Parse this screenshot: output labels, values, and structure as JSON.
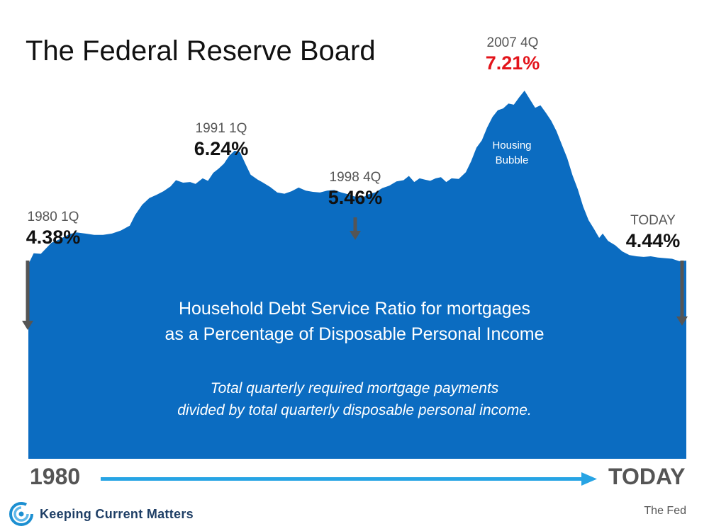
{
  "title": "The Federal Reserve Board",
  "colors": {
    "area": "#0b6cc1",
    "peak_value": "#e3141b",
    "axis_arrow": "#27a4e4",
    "pointer": "#555555"
  },
  "annotations": {
    "start": {
      "period": "1980 1Q",
      "value": "4.38%"
    },
    "peak1991": {
      "period": "1991 1Q",
      "value": "6.24%"
    },
    "trough1998": {
      "period": "1998 4Q",
      "value": "5.46%"
    },
    "peak2007": {
      "period": "2007 4Q",
      "value": "7.21%"
    },
    "today": {
      "period": "TODAY",
      "value": "4.44%"
    }
  },
  "bubble_label_line1": "Housing",
  "bubble_label_line2": "Bubble",
  "description": {
    "line1": "Household Debt Service Ratio for mortgages",
    "line2": "as a Percentage of Disposable Personal Income",
    "sub_line1": "Total quarterly required mortgage payments",
    "sub_line2": "divided by total quarterly disposable personal income."
  },
  "axis": {
    "start_label": "1980",
    "end_label": "TODAY"
  },
  "brand": {
    "name": "Keeping Current Matters",
    "icon": "kcm-swirl-logo-icon"
  },
  "source": "The Fed",
  "chart_data": {
    "type": "area",
    "title": "The Federal Reserve Board",
    "xlabel": "",
    "ylabel": "",
    "x_range": [
      1980.0,
      2017.0
    ],
    "y_range": [
      0,
      7.21
    ],
    "grid": false,
    "legend": "none",
    "points": [
      [
        1980.0,
        4.38
      ],
      [
        1980.3,
        4.56
      ],
      [
        1980.7,
        4.55
      ],
      [
        1981.3,
        4.73
      ],
      [
        1981.7,
        4.78
      ],
      [
        1982.3,
        4.87
      ],
      [
        1982.7,
        4.9
      ],
      [
        1983.2,
        4.88
      ],
      [
        1983.7,
        4.86
      ],
      [
        1984.2,
        4.86
      ],
      [
        1984.7,
        4.88
      ],
      [
        1985.2,
        4.93
      ],
      [
        1985.7,
        5.01
      ],
      [
        1986.0,
        5.18
      ],
      [
        1986.4,
        5.35
      ],
      [
        1986.8,
        5.46
      ],
      [
        1987.2,
        5.51
      ],
      [
        1987.6,
        5.57
      ],
      [
        1988.0,
        5.65
      ],
      [
        1988.3,
        5.75
      ],
      [
        1988.7,
        5.71
      ],
      [
        1989.1,
        5.72
      ],
      [
        1989.4,
        5.69
      ],
      [
        1989.8,
        5.78
      ],
      [
        1990.1,
        5.74
      ],
      [
        1990.4,
        5.87
      ],
      [
        1990.7,
        5.94
      ],
      [
        1991.0,
        6.02
      ],
      [
        1991.3,
        6.15
      ],
      [
        1991.6,
        6.23
      ],
      [
        1991.9,
        6.21
      ],
      [
        1992.2,
        6.02
      ],
      [
        1992.5,
        5.84
      ],
      [
        1992.9,
        5.76
      ],
      [
        1993.2,
        5.71
      ],
      [
        1993.6,
        5.64
      ],
      [
        1994.0,
        5.55
      ],
      [
        1994.4,
        5.53
      ],
      [
        1994.8,
        5.57
      ],
      [
        1995.2,
        5.63
      ],
      [
        1995.6,
        5.58
      ],
      [
        1996.0,
        5.56
      ],
      [
        1996.4,
        5.55
      ],
      [
        1996.8,
        5.58
      ],
      [
        1997.2,
        5.59
      ],
      [
        1997.6,
        5.55
      ],
      [
        1998.0,
        5.52
      ],
      [
        1998.4,
        5.48
      ],
      [
        1998.75,
        5.46
      ],
      [
        1999.1,
        5.52
      ],
      [
        1999.5,
        5.55
      ],
      [
        1999.9,
        5.62
      ],
      [
        2000.3,
        5.66
      ],
      [
        2000.7,
        5.73
      ],
      [
        2001.1,
        5.75
      ],
      [
        2001.4,
        5.82
      ],
      [
        2001.7,
        5.72
      ],
      [
        2002.0,
        5.78
      ],
      [
        2002.3,
        5.76
      ],
      [
        2002.6,
        5.74
      ],
      [
        2002.9,
        5.78
      ],
      [
        2003.2,
        5.8
      ],
      [
        2003.5,
        5.72
      ],
      [
        2003.8,
        5.78
      ],
      [
        2004.2,
        5.77
      ],
      [
        2004.6,
        5.88
      ],
      [
        2004.9,
        6.06
      ],
      [
        2005.2,
        6.28
      ],
      [
        2005.5,
        6.4
      ],
      [
        2005.8,
        6.61
      ],
      [
        2006.1,
        6.78
      ],
      [
        2006.4,
        6.89
      ],
      [
        2006.7,
        6.92
      ],
      [
        2007.0,
        7.0
      ],
      [
        2007.3,
        6.98
      ],
      [
        2007.6,
        7.1
      ],
      [
        2007.9,
        7.21
      ],
      [
        2008.2,
        7.07
      ],
      [
        2008.5,
        6.93
      ],
      [
        2008.8,
        6.97
      ],
      [
        2009.1,
        6.85
      ],
      [
        2009.4,
        6.72
      ],
      [
        2009.7,
        6.55
      ],
      [
        2010.0,
        6.33
      ],
      [
        2010.3,
        6.11
      ],
      [
        2010.6,
        5.83
      ],
      [
        2010.9,
        5.6
      ],
      [
        2011.2,
        5.32
      ],
      [
        2011.5,
        5.1
      ],
      [
        2011.8,
        4.96
      ],
      [
        2012.1,
        4.81
      ],
      [
        2012.3,
        4.88
      ],
      [
        2012.6,
        4.76
      ],
      [
        2013.0,
        4.69
      ],
      [
        2013.4,
        4.59
      ],
      [
        2013.8,
        4.53
      ],
      [
        2014.2,
        4.51
      ],
      [
        2014.6,
        4.5
      ],
      [
        2015.0,
        4.51
      ],
      [
        2015.4,
        4.49
      ],
      [
        2015.8,
        4.48
      ],
      [
        2016.2,
        4.47
      ],
      [
        2016.6,
        4.43
      ],
      [
        2017.0,
        4.44
      ]
    ]
  }
}
